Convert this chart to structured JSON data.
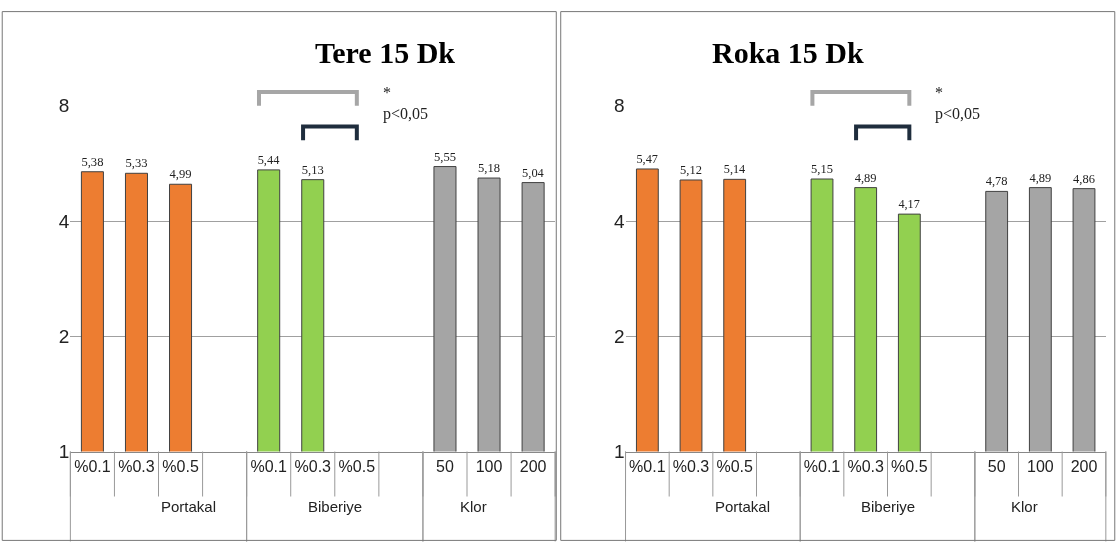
{
  "chart_data": [
    {
      "type": "bar",
      "title": "Tere 15 Dk",
      "categories": [
        "%0.1",
        "%0.3",
        "%0.5",
        null,
        "%0.1",
        "%0.3",
        "%0.5",
        null,
        "50",
        "100",
        "200"
      ],
      "values": [
        5.38,
        5.33,
        4.99,
        null,
        5.44,
        5.13,
        null,
        null,
        5.55,
        5.18,
        5.04
      ],
      "value_labels": [
        "5,38",
        "5,33",
        "4,99",
        null,
        "5,44",
        "5,13",
        null,
        null,
        "5,55",
        "5,18",
        "5,04"
      ],
      "colors": [
        "#ed7d31",
        "#ed7d31",
        "#ed7d31",
        null,
        "#92d050",
        "#92d050",
        "#92d050",
        null,
        "#a5a5a5",
        "#a5a5a5",
        "#a5a5a5"
      ],
      "annotations": [
        "Portakal",
        "Biberiye",
        "Klor",
        "*\np<0,05"
      ],
      "log": "y",
      "ylim": [
        1,
        8
      ],
      "yticks": [
        1,
        2,
        4,
        8
      ],
      "grid": "y",
      "legend": false
    },
    {
      "type": "bar",
      "title": "Roka 15 Dk",
      "categories": [
        "%0.1",
        "%0.3",
        "%0.5",
        null,
        "%0.1",
        "%0.3",
        "%0.5",
        null,
        "50",
        "100",
        "200"
      ],
      "values": [
        5.47,
        5.12,
        5.14,
        null,
        5.15,
        4.89,
        4.17,
        null,
        4.78,
        4.89,
        4.86
      ],
      "value_labels": [
        "5,47",
        "5,12",
        "5,14",
        null,
        "5,15",
        "4,89",
        "4,17",
        null,
        "4,78",
        "4,89",
        "4,86"
      ],
      "colors": [
        "#ed7d31",
        "#ed7d31",
        "#ed7d31",
        null,
        "#92d050",
        "#92d050",
        "#92d050",
        null,
        "#a5a5a5",
        "#a5a5a5",
        "#a5a5a5"
      ],
      "annotations": [
        "Portakal",
        "Biberiye",
        "Klor",
        "*\np<0,05"
      ],
      "log": "y",
      "ylim": [
        1,
        8
      ],
      "yticks": [
        1,
        2,
        4,
        8
      ],
      "grid": "y",
      "legend": false
    }
  ]
}
